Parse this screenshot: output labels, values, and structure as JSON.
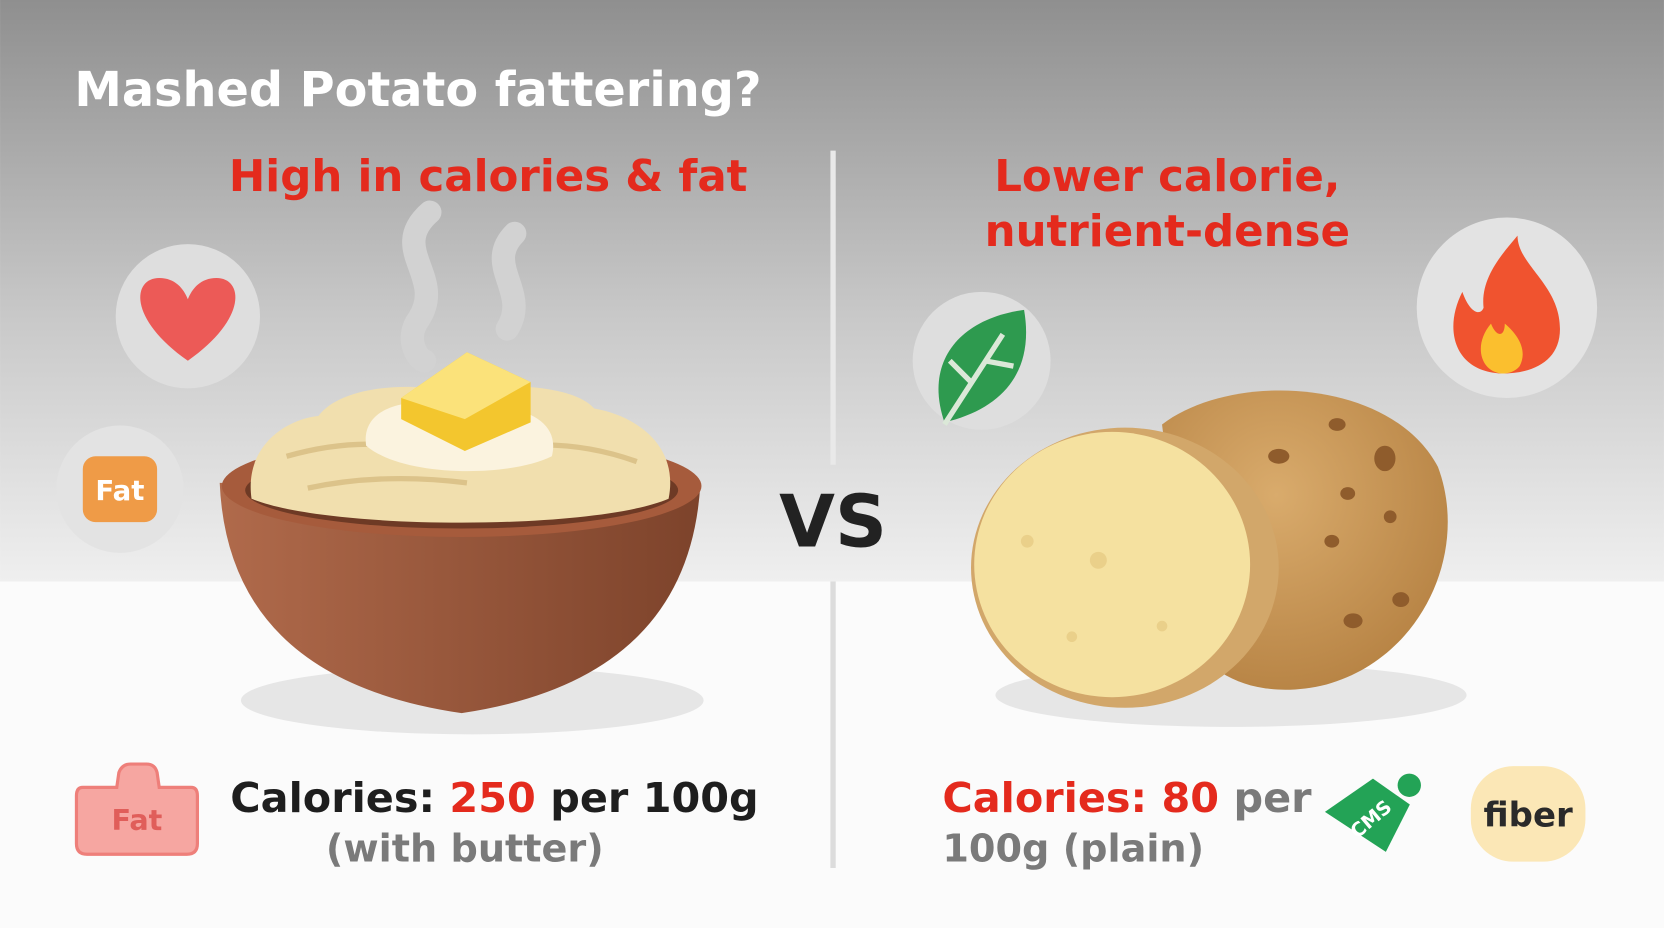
{
  "header": {
    "title": "Mashed Potato fattering?"
  },
  "left": {
    "headline": "High in calories & fat",
    "badge": "Fat",
    "tag": "Fat",
    "calories": {
      "label": "Calories:",
      "value": 250,
      "unit": "per 100g",
      "note": "(with butter)"
    }
  },
  "divider": {
    "label": "VS"
  },
  "right": {
    "headline": [
      "Lower calorie,",
      "nutrient-dense"
    ],
    "tag": "CMS",
    "badge": "fiber",
    "calories": {
      "label": "Calories:",
      "value": 80,
      "unit": "per",
      "note": "100g (plain)"
    }
  }
}
